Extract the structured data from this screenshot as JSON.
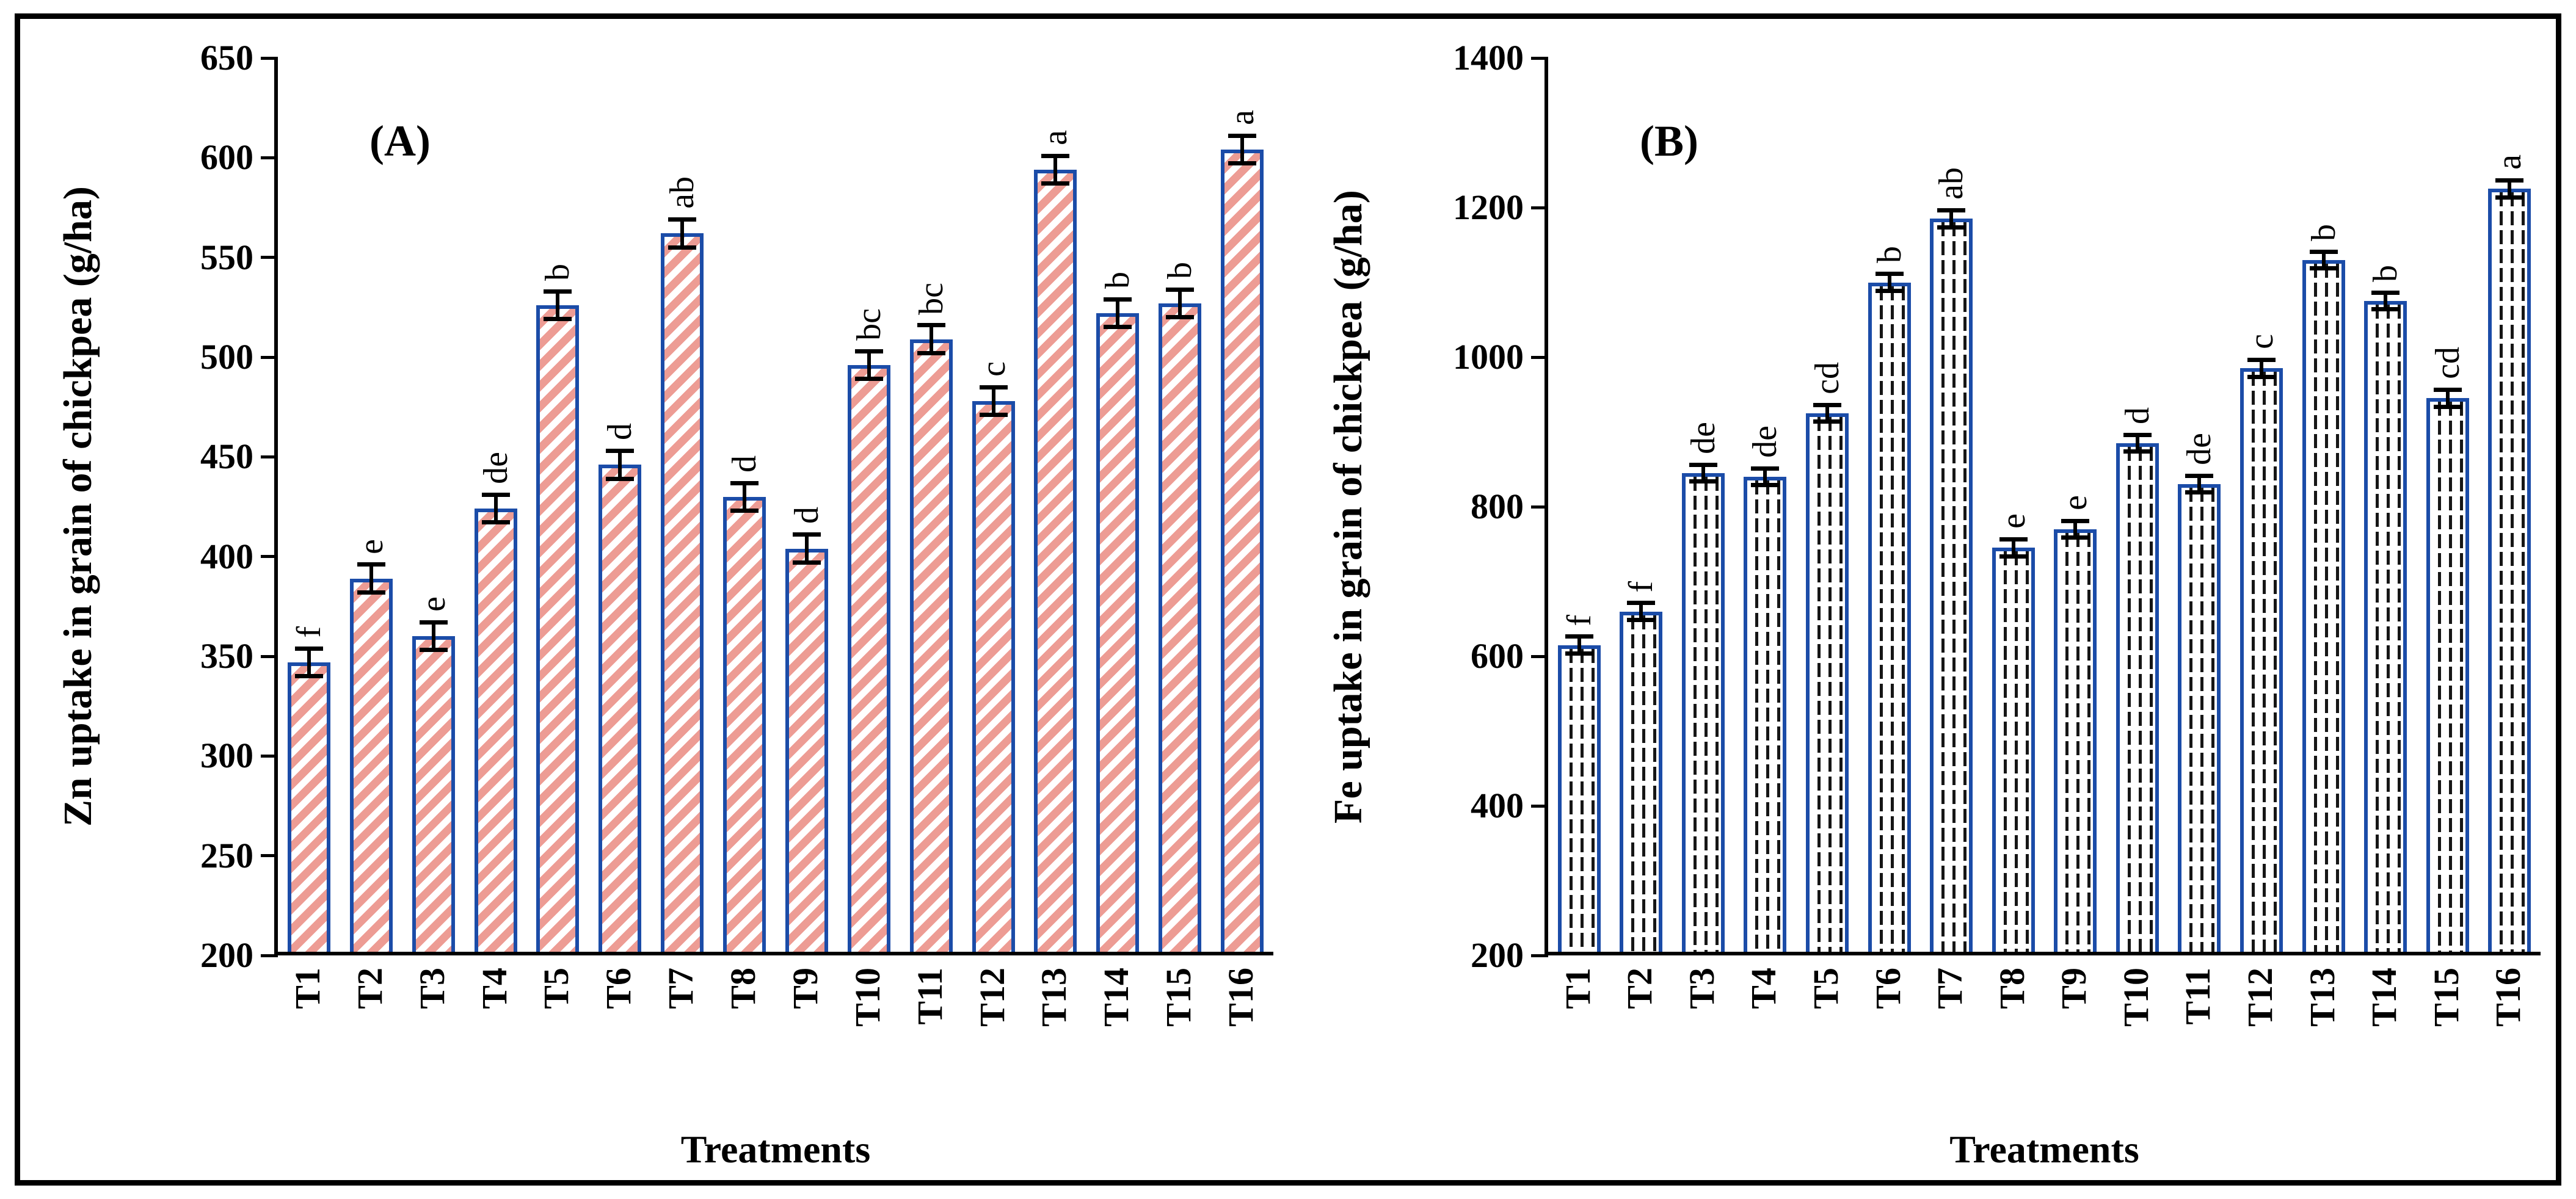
{
  "chart_data": [
    {
      "type": "bar",
      "panel_id": "A",
      "marker": "(A)",
      "ylabel": "Zn uptake in grain of chickpea (g/ha)",
      "xlabel": "Treatments",
      "ylim": [
        200,
        650
      ],
      "y_tick_step": 50,
      "y_ticks": [
        650,
        600,
        550,
        500,
        450,
        400,
        350,
        300,
        250,
        200
      ],
      "categories": [
        "T1",
        "T2",
        "T3",
        "T4",
        "T5",
        "T6",
        "T7",
        "T8",
        "T9",
        "T10",
        "T11",
        "T12",
        "T13",
        "T14",
        "T15",
        "T16"
      ],
      "values": [
        347,
        389,
        360,
        424,
        526,
        446,
        562,
        430,
        404,
        496,
        509,
        478,
        594,
        522,
        527,
        604
      ],
      "error_bar": 8,
      "sig_letters": [
        "f",
        "e",
        "e",
        "de",
        "b",
        "d",
        "ab",
        "d",
        "d",
        "bc",
        "bc",
        "c",
        "a",
        "b",
        "b",
        "a"
      ],
      "grid": "off",
      "legend": "none",
      "bar_pattern": "diagonal-hatch",
      "hatch_color": "#ED9C94",
      "bar_border_color": "#1B4CA8",
      "bar_fill_color": "#FFFFFF"
    },
    {
      "type": "bar",
      "panel_id": "B",
      "marker": "(B)",
      "ylabel": "Fe uptake in grain of chickpea (g/ha)",
      "xlabel": "Treatments",
      "ylim": [
        200,
        1400
      ],
      "y_tick_step": 200,
      "y_ticks": [
        1400,
        1200,
        1000,
        800,
        600,
        400,
        200
      ],
      "categories": [
        "T1",
        "T2",
        "T3",
        "T4",
        "T5",
        "T6",
        "T7",
        "T8",
        "T9",
        "T10",
        "T11",
        "T12",
        "T13",
        "T14",
        "T15",
        "T16"
      ],
      "values": [
        615,
        660,
        845,
        840,
        925,
        1100,
        1185,
        745,
        770,
        885,
        830,
        985,
        1130,
        1075,
        945,
        1225
      ],
      "error_bar": 14,
      "sig_letters": [
        "f",
        "f",
        "de",
        "de",
        "cd",
        "b",
        "ab",
        "e",
        "e",
        "d",
        "de",
        "c",
        "b",
        "b",
        "cd",
        "a"
      ],
      "grid": "off",
      "legend": "none",
      "bar_pattern": "dotted-vertical",
      "hatch_color": "#161616",
      "bar_border_color": "#1B4CA8",
      "bar_fill_color": "#FFFFFF"
    }
  ],
  "figure": {
    "frame_color": "#000000",
    "background_color": "#FFFFFF",
    "text_color": "#000000"
  }
}
